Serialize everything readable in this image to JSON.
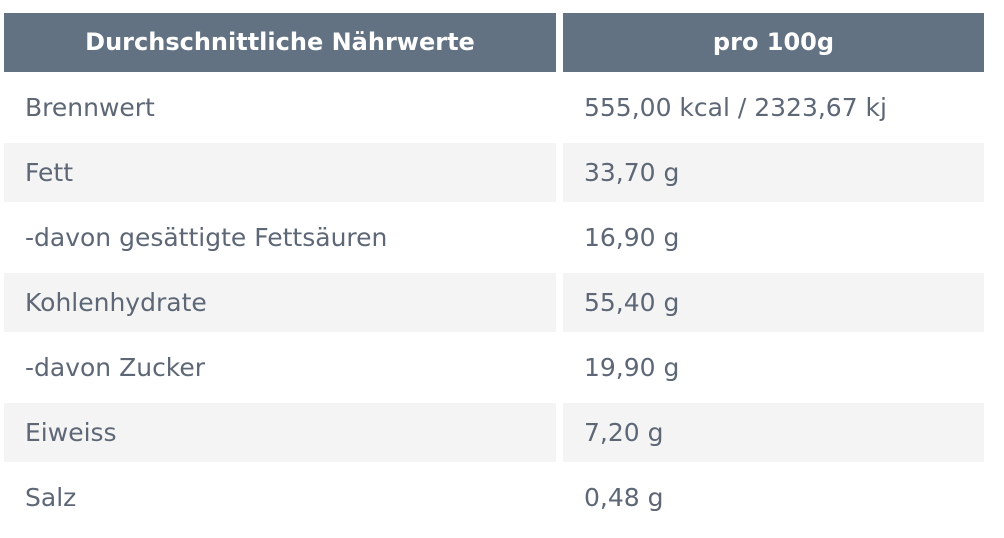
{
  "header": {
    "columns": [
      "Durchschnittliche Nährwerte",
      "pro 100g"
    ]
  },
  "table": {
    "rows": [
      [
        "Brennwert",
        "555,00 kcal / 2323,67 kj"
      ],
      [
        "Fett",
        "33,70 g"
      ],
      [
        "-davon gesättigte Fettsäuren",
        "16,90 g"
      ],
      [
        "Kohlenhydrate",
        "55,40 g"
      ],
      [
        "-davon Zucker",
        "19,90 g"
      ],
      [
        "Eiweiss",
        "7,20 g"
      ],
      [
        "Salz",
        "0,48 g"
      ]
    ]
  }
}
